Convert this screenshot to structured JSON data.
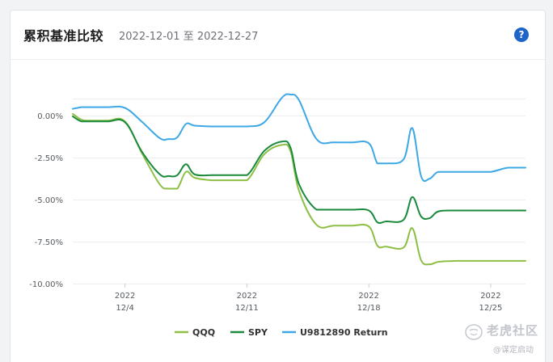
{
  "header": {
    "title": "累积基准比较",
    "date_range": "2022-12-01 至 2022-12-27",
    "help_label": "?"
  },
  "watermark": {
    "text": "老虎社区",
    "sub": "@谋定启动"
  },
  "colors": {
    "qqq": "#8dbf45",
    "spy": "#1a8a3c",
    "return": "#3ea8e5",
    "grid": "#eceef1",
    "axis_text": "#555a60"
  },
  "chart_data": {
    "type": "line",
    "title": "累积基准比较",
    "x_range": [
      "2022-12-01",
      "2022-12-27"
    ],
    "ylim": [
      -10.0,
      2.0
    ],
    "y_ticks": [
      0,
      -2.5,
      -5,
      -7.5,
      -10
    ],
    "y_tick_labels": [
      "0.00%",
      "-2.50%",
      "-5.00%",
      "-7.50%",
      "-10.00%"
    ],
    "x_ticks": [
      {
        "date": "2022-12-04",
        "line1": "2022",
        "line2": "12/4"
      },
      {
        "date": "2022-12-11",
        "line1": "2022",
        "line2": "12/11"
      },
      {
        "date": "2022-12-18",
        "line1": "2022",
        "line2": "12/18"
      },
      {
        "date": "2022-12-25",
        "line1": "2022",
        "line2": "12/25"
      }
    ],
    "grid": true,
    "legend_position": "bottom",
    "series": [
      {
        "name": "QQQ",
        "color_key": "qqq",
        "points": [
          [
            "2022-12-01",
            0.1
          ],
          [
            "2022-12-01T12:00",
            -0.25
          ],
          [
            "2022-12-02",
            -0.3
          ],
          [
            "2022-12-03",
            -0.3
          ],
          [
            "2022-12-04",
            -0.35
          ],
          [
            "2022-12-05",
            -2.3
          ],
          [
            "2022-12-06",
            -4.1
          ],
          [
            "2022-12-06T12:00",
            -4.35
          ],
          [
            "2022-12-07",
            -4.35
          ],
          [
            "2022-12-07T12:00",
            -3.35
          ],
          [
            "2022-12-08",
            -3.7
          ],
          [
            "2022-12-09",
            -3.85
          ],
          [
            "2022-12-10",
            -3.85
          ],
          [
            "2022-12-11",
            -3.85
          ],
          [
            "2022-12-12",
            -2.3
          ],
          [
            "2022-12-13",
            -1.75
          ],
          [
            "2022-12-13T12:00",
            -2.1
          ],
          [
            "2022-12-14",
            -4.5
          ],
          [
            "2022-12-15",
            -6.5
          ],
          [
            "2022-12-16",
            -6.55
          ],
          [
            "2022-12-17",
            -6.55
          ],
          [
            "2022-12-18",
            -6.6
          ],
          [
            "2022-12-18T12:00",
            -7.75
          ],
          [
            "2022-12-19",
            -7.8
          ],
          [
            "2022-12-20",
            -7.85
          ],
          [
            "2022-12-20T12:00",
            -6.7
          ],
          [
            "2022-12-21",
            -8.6
          ],
          [
            "2022-12-21T12:00",
            -8.85
          ],
          [
            "2022-12-22",
            -8.7
          ],
          [
            "2022-12-23",
            -8.65
          ],
          [
            "2022-12-24",
            -8.65
          ],
          [
            "2022-12-25",
            -8.65
          ],
          [
            "2022-12-26",
            -8.65
          ],
          [
            "2022-12-27",
            -8.65
          ]
        ]
      },
      {
        "name": "SPY",
        "color_key": "spy",
        "points": [
          [
            "2022-12-01",
            -0.05
          ],
          [
            "2022-12-01T12:00",
            -0.35
          ],
          [
            "2022-12-02",
            -0.35
          ],
          [
            "2022-12-03",
            -0.35
          ],
          [
            "2022-12-04",
            -0.4
          ],
          [
            "2022-12-05",
            -2.2
          ],
          [
            "2022-12-06",
            -3.5
          ],
          [
            "2022-12-06T12:00",
            -3.6
          ],
          [
            "2022-12-07",
            -3.55
          ],
          [
            "2022-12-07T12:00",
            -2.9
          ],
          [
            "2022-12-08",
            -3.5
          ],
          [
            "2022-12-09",
            -3.55
          ],
          [
            "2022-12-10",
            -3.55
          ],
          [
            "2022-12-11",
            -3.55
          ],
          [
            "2022-12-12",
            -2.1
          ],
          [
            "2022-12-13",
            -1.55
          ],
          [
            "2022-12-13T12:00",
            -1.9
          ],
          [
            "2022-12-14",
            -4.1
          ],
          [
            "2022-12-15",
            -5.6
          ],
          [
            "2022-12-16",
            -5.6
          ],
          [
            "2022-12-17",
            -5.6
          ],
          [
            "2022-12-18",
            -5.65
          ],
          [
            "2022-12-18T12:00",
            -6.35
          ],
          [
            "2022-12-19",
            -6.3
          ],
          [
            "2022-12-20",
            -6.2
          ],
          [
            "2022-12-20T12:00",
            -4.85
          ],
          [
            "2022-12-21",
            -6.0
          ],
          [
            "2022-12-21T12:00",
            -6.1
          ],
          [
            "2022-12-22",
            -5.7
          ],
          [
            "2022-12-23",
            -5.65
          ],
          [
            "2022-12-24",
            -5.65
          ],
          [
            "2022-12-25",
            -5.65
          ],
          [
            "2022-12-26",
            -5.65
          ],
          [
            "2022-12-27",
            -5.65
          ]
        ]
      },
      {
        "name": "U9812890 Return",
        "color_key": "return",
        "points": [
          [
            "2022-12-01",
            0.4
          ],
          [
            "2022-12-01T12:00",
            0.5
          ],
          [
            "2022-12-02",
            0.5
          ],
          [
            "2022-12-03",
            0.5
          ],
          [
            "2022-12-04",
            0.45
          ],
          [
            "2022-12-05",
            -0.4
          ],
          [
            "2022-12-06",
            -1.35
          ],
          [
            "2022-12-06T12:00",
            -1.4
          ],
          [
            "2022-12-07",
            -1.3
          ],
          [
            "2022-12-07T12:00",
            -0.5
          ],
          [
            "2022-12-08",
            -0.6
          ],
          [
            "2022-12-09",
            -0.65
          ],
          [
            "2022-12-10",
            -0.65
          ],
          [
            "2022-12-11",
            -0.65
          ],
          [
            "2022-12-12",
            -0.4
          ],
          [
            "2022-12-13",
            1.05
          ],
          [
            "2022-12-13T12:00",
            1.25
          ],
          [
            "2022-12-14",
            0.9
          ],
          [
            "2022-12-15",
            -1.4
          ],
          [
            "2022-12-16",
            -1.6
          ],
          [
            "2022-12-17",
            -1.6
          ],
          [
            "2022-12-18",
            -1.65
          ],
          [
            "2022-12-18T12:00",
            -2.85
          ],
          [
            "2022-12-19",
            -2.85
          ],
          [
            "2022-12-20",
            -2.6
          ],
          [
            "2022-12-20T12:00",
            -0.75
          ],
          [
            "2022-12-21",
            -3.6
          ],
          [
            "2022-12-21T12:00",
            -3.75
          ],
          [
            "2022-12-22",
            -3.35
          ],
          [
            "2022-12-23",
            -3.35
          ],
          [
            "2022-12-24",
            -3.35
          ],
          [
            "2022-12-25",
            -3.35
          ],
          [
            "2022-12-26",
            -3.1
          ],
          [
            "2022-12-27",
            -3.1
          ]
        ]
      }
    ]
  }
}
